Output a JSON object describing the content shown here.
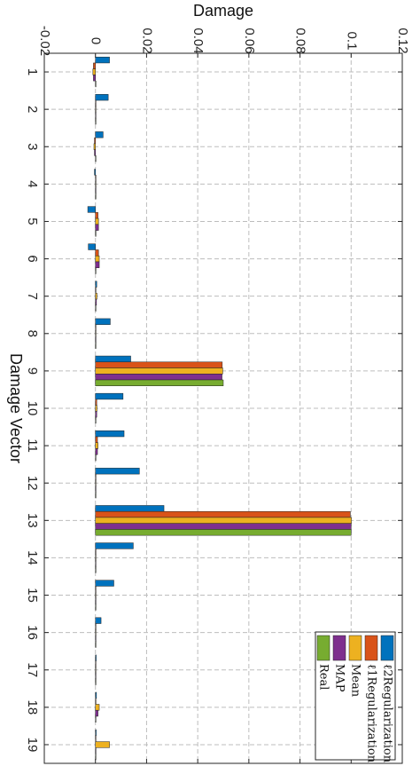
{
  "chart_data": {
    "type": "bar",
    "orientation": "rotated-90-clockwise",
    "xlabel": "Damage Vector",
    "ylabel": "Damage",
    "categories": [
      "1",
      "2",
      "3",
      "4",
      "5",
      "6",
      "7",
      "8",
      "9",
      "10",
      "11",
      "12",
      "13",
      "14",
      "15",
      "16",
      "17",
      "18",
      "19"
    ],
    "ylim": [
      -0.02,
      0.12
    ],
    "yticks": [
      "-0.02",
      "0",
      "0.02",
      "0.04",
      "0.06",
      "0.08",
      "0.1",
      "0.12"
    ],
    "grid": true,
    "legend_position": "bottom-right",
    "series": [
      {
        "name": "ℓ2Regularization",
        "color": "#0072BD",
        "values": [
          0.0055,
          0.005,
          0.003,
          -0.0004,
          -0.003,
          -0.0028,
          0.0005,
          0.0058,
          0.0138,
          0.0108,
          0.0112,
          0.0172,
          0.0268,
          0.0148,
          0.0072,
          0.0022,
          0.0003,
          0.0004,
          0.0003
        ]
      },
      {
        "name": "ℓ1Regularization",
        "color": "#D95319",
        "values": [
          -0.0008,
          0.0001,
          -0.0004,
          0.0002,
          0.001,
          0.0012,
          0.0002,
          0.0001,
          0.0496,
          0.0005,
          0.0008,
          0.0001,
          0.0997,
          0.0001,
          0.0001,
          0.0001,
          0.0001,
          0.0002,
          0.0001
        ]
      },
      {
        "name": "Mean",
        "color": "#EDB120",
        "values": [
          -0.001,
          0.0001,
          -0.0006,
          0.0002,
          0.0012,
          0.0015,
          0.0006,
          0.0002,
          0.0498,
          0.0006,
          0.001,
          0.0001,
          0.1001,
          0.0001,
          0.0001,
          0.0001,
          0.0001,
          0.0015,
          0.0055
        ]
      },
      {
        "name": "MAP",
        "color": "#7E2F8E",
        "values": [
          -0.0008,
          0.0001,
          -0.0004,
          0.0002,
          0.0012,
          0.0015,
          0.0004,
          0.0002,
          0.0495,
          0.0005,
          0.0008,
          0.0001,
          0.1,
          0.0001,
          0.0001,
          0.0001,
          0.0001,
          0.001,
          0.0001
        ]
      },
      {
        "name": "Real",
        "color": "#77AC30",
        "values": [
          0,
          0,
          0,
          0,
          0,
          0,
          0,
          0,
          0.05,
          0,
          0,
          0,
          0.1,
          0,
          0,
          0,
          0,
          0,
          0
        ]
      }
    ]
  }
}
